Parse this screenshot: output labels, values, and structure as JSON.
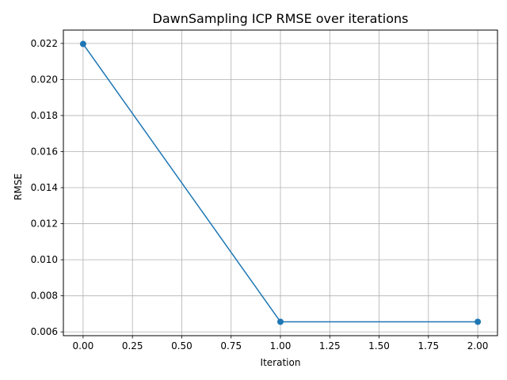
{
  "chart_data": {
    "type": "line",
    "title": "DawnSampling ICP RMSE over iterations",
    "xlabel": "Iteration",
    "ylabel": "RMSE",
    "x": [
      0,
      1,
      2
    ],
    "series": [
      {
        "values": [
          0.02197,
          0.00656,
          0.00656
        ]
      }
    ],
    "xlim": [
      -0.1,
      2.1
    ],
    "ylim": [
      0.00579,
      0.02274
    ],
    "xticks": [
      "0.00",
      "0.25",
      "0.50",
      "0.75",
      "1.00",
      "1.25",
      "1.50",
      "1.75",
      "2.00"
    ],
    "yticks": [
      "0.006",
      "0.008",
      "0.010",
      "0.012",
      "0.014",
      "0.016",
      "0.018",
      "0.020",
      "0.022"
    ],
    "grid": true,
    "markers": true,
    "line_color": "#1f77b4"
  }
}
